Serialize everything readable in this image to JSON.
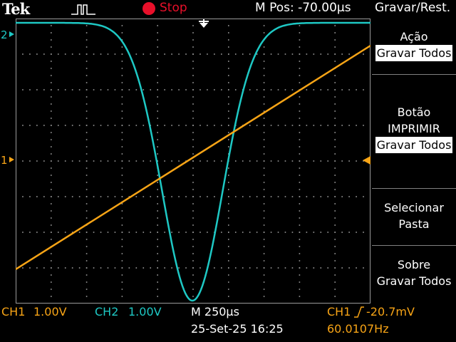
{
  "header": {
    "brand": "Tek",
    "run_state": "Stop",
    "m_pos": "M Pos: -70.00µs",
    "menu_title": "Gravar/Rest."
  },
  "channels": {
    "ch1": {
      "marker": "1",
      "color": "#f7a416",
      "label": "CH1",
      "scale": "1.00V"
    },
    "ch2": {
      "marker": "2",
      "color": "#1ec8c4",
      "label": "CH2",
      "scale": "1.00V"
    }
  },
  "timebase": {
    "label": "M 250µs"
  },
  "datetime": "25-Set-25 16:25",
  "trigger": {
    "source": "CH1",
    "level": "-20.7mV",
    "frequency": "60.0107Hz"
  },
  "side_menu": [
    {
      "title": [
        "Ação"
      ],
      "value": "Gravar Todos"
    },
    {
      "title": [
        "Botão",
        "IMPRIMIR"
      ],
      "value": "Gravar Todos"
    },
    {
      "title": [
        "Selecionar",
        "Pasta"
      ],
      "value": ""
    },
    {
      "title": [
        "Sobre",
        "Gravar Todos"
      ],
      "value": ""
    }
  ],
  "icons": {
    "trigger_pulse": "trigger-pulse-icon",
    "stop": "stop-indicator-icon",
    "trigger_position": "trigger-position-arrow-icon",
    "trigger_level": "trigger-level-arrow-icon",
    "trigger_slope": "rising-edge-icon"
  }
}
